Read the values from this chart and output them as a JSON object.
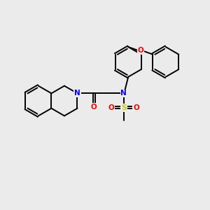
{
  "bg_color": "#ebebeb",
  "atom_colors": {
    "C": "#000000",
    "N": "#0000ff",
    "O": "#ff0000",
    "S": "#cccc00"
  },
  "bond_color": "#000000",
  "bond_lw": 1.4,
  "figsize": [
    3.0,
    3.0
  ],
  "dpi": 100,
  "xlim": [
    0,
    10
  ],
  "ylim": [
    0,
    10
  ]
}
